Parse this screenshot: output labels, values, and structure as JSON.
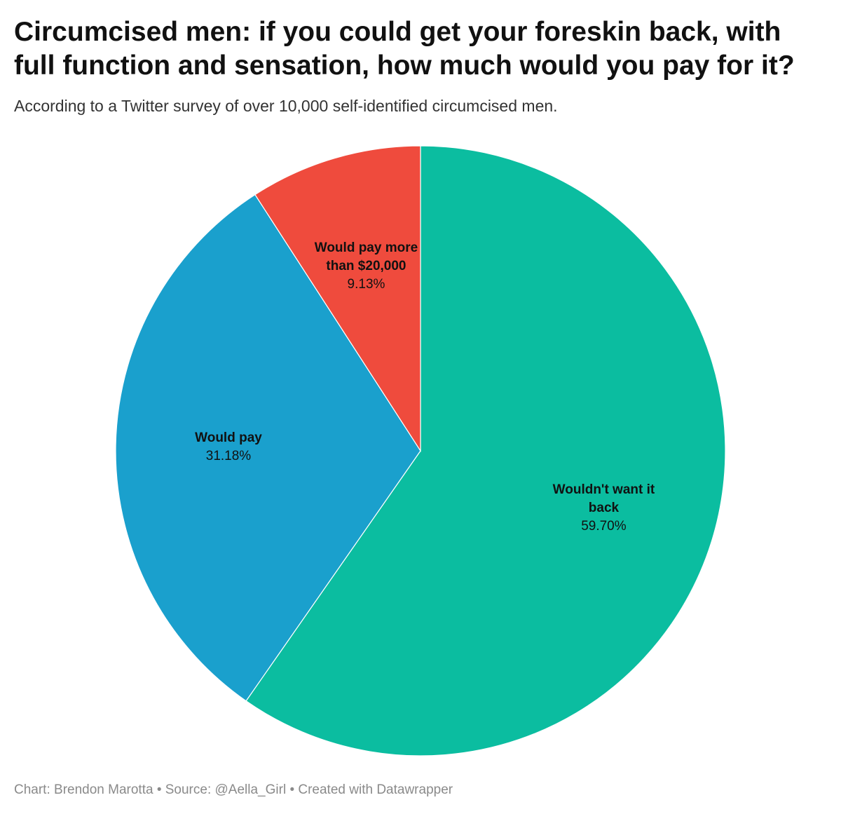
{
  "chart_data": {
    "type": "pie",
    "title": "Circumcised men: if you could get your foreskin back, with full function and sensation, how much would you pay for it?",
    "subtitle": "According to a Twitter survey of over 10,000 self-identified circumcised men.",
    "footer": "Chart: Brendon Marotta • Source: @Aella_Girl • Created with Datawrapper",
    "categories": [
      "Wouldn't want it back",
      "Would pay",
      "Would pay more than $20,000"
    ],
    "values": [
      59.7,
      31.18,
      9.13
    ],
    "value_labels": [
      "59.70%",
      "31.18%",
      "9.13%"
    ],
    "colors": [
      "#0bbda0",
      "#1aa0cd",
      "#ef4b3d"
    ]
  }
}
